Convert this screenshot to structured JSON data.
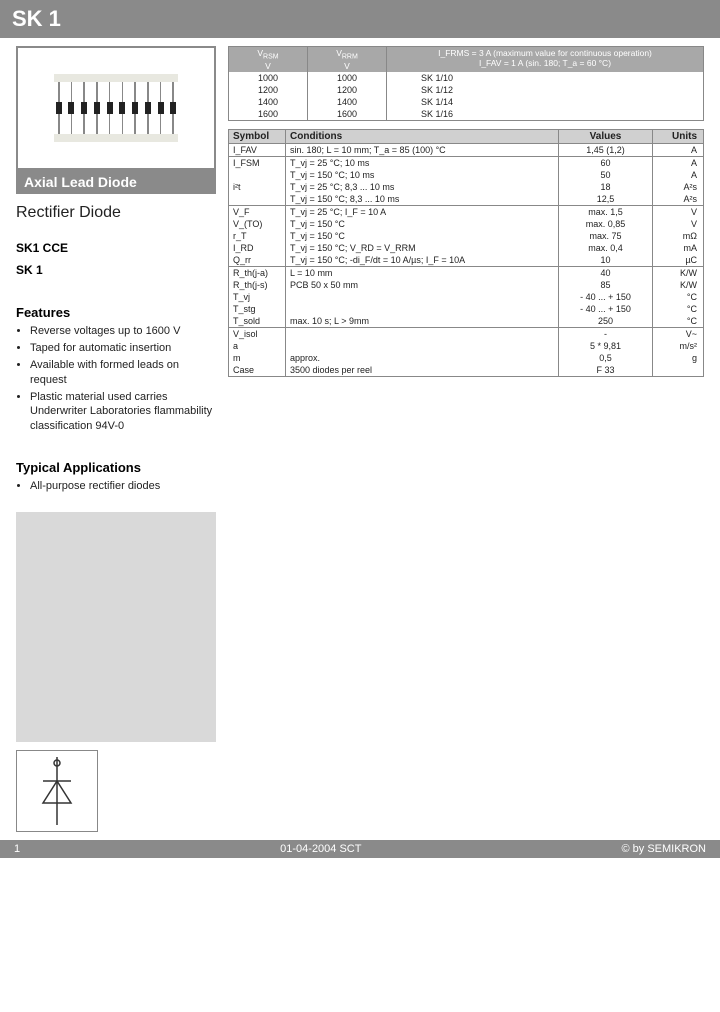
{
  "header": {
    "title": "SK 1"
  },
  "left": {
    "image_label": "Axial Lead Diode",
    "subtitle": "Rectifier Diode",
    "codes": [
      "SK1 CCE",
      "SK 1"
    ],
    "features_title": "Features",
    "features": [
      "Reverse voltages up to 1600 V",
      "Taped for automatic insertion",
      "Available with formed leads on request",
      "Plastic material used carries Underwriter Laboratories flammability classification 94V-0"
    ],
    "apps_title": "Typical Applications",
    "apps": [
      "All-purpose rectifier diodes"
    ]
  },
  "top_table": {
    "header": {
      "c1": "V",
      "c1_sym": "RSM",
      "c2": "V",
      "c2_sym": "RRM",
      "note1": "I_FRMS = 3 A (maximum value for continuous operation)",
      "note2": "I_FAV = 1 A (sin. 180; T_a = 60 °C)",
      "unit1": "V",
      "unit2": "V"
    },
    "rows": [
      {
        "a": "1000",
        "b": "1000",
        "c": "SK 1/10"
      },
      {
        "a": "1200",
        "b": "1200",
        "c": "SK 1/12"
      },
      {
        "a": "1400",
        "b": "1400",
        "c": "SK 1/14"
      },
      {
        "a": "1600",
        "b": "1600",
        "c": "SK 1/16"
      }
    ]
  },
  "spec_table": {
    "head": {
      "sym": "Symbol",
      "cond": "Conditions",
      "val": "Values",
      "unit": "Units"
    },
    "groups": [
      [
        {
          "sym": "I_FAV",
          "cond": "sin. 180; L = 10 mm; T_a = 85 (100) °C",
          "val": "1,45 (1,2)",
          "unit": "A"
        }
      ],
      [
        {
          "sym": "I_FSM",
          "cond": "T_vj = 25 °C; 10 ms",
          "val": "60",
          "unit": "A"
        },
        {
          "sym": "",
          "cond": "T_vj = 150 °C; 10 ms",
          "val": "50",
          "unit": "A"
        },
        {
          "sym": "i²t",
          "cond": "T_vj = 25 °C; 8,3 ... 10 ms",
          "val": "18",
          "unit": "A²s"
        },
        {
          "sym": "",
          "cond": "T_vj = 150 °C; 8,3 ... 10 ms",
          "val": "12,5",
          "unit": "A²s"
        }
      ],
      [
        {
          "sym": "V_F",
          "cond": "T_vj = 25 °C; I_F = 10 A",
          "val": "max. 1,5",
          "unit": "V"
        },
        {
          "sym": "V_(TO)",
          "cond": "T_vj = 150 °C",
          "val": "max. 0,85",
          "unit": "V"
        },
        {
          "sym": "r_T",
          "cond": "T_vj = 150 °C",
          "val": "max. 75",
          "unit": "mΩ"
        },
        {
          "sym": "I_RD",
          "cond": "T_vj = 150 °C; V_RD = V_RRM",
          "val": "max. 0,4",
          "unit": "mA"
        },
        {
          "sym": "Q_rr",
          "cond": "T_vj = 150 °C; -di_F/dt = 10 A/µs; I_F = 10A",
          "val": "10",
          "unit": "µC"
        }
      ],
      [
        {
          "sym": "R_th(j-a)",
          "cond": "L = 10 mm",
          "val": "40",
          "unit": "K/W"
        },
        {
          "sym": "R_th(j-s)",
          "cond": "PCB 50 x 50 mm",
          "val": "85",
          "unit": "K/W"
        },
        {
          "sym": "T_vj",
          "cond": "",
          "val": "- 40 ... + 150",
          "unit": "°C"
        },
        {
          "sym": "T_stg",
          "cond": "",
          "val": "- 40 ... + 150",
          "unit": "°C"
        },
        {
          "sym": "T_sold",
          "cond": "max. 10 s; L > 9mm",
          "val": "250",
          "unit": "°C"
        }
      ],
      [
        {
          "sym": "V_isol",
          "cond": "",
          "val": "-",
          "unit": "V~"
        },
        {
          "sym": "a",
          "cond": "",
          "val": "5 * 9,81",
          "unit": "m/s²"
        },
        {
          "sym": "m",
          "cond": "approx.",
          "val": "0,5",
          "unit": "g"
        },
        {
          "sym": "Case",
          "cond": "3500 diodes per reel",
          "val": "F 33",
          "unit": ""
        }
      ]
    ]
  },
  "footer": {
    "page": "1",
    "date": "01-04-2004  SCT",
    "copy": "© by SEMIKRON"
  }
}
